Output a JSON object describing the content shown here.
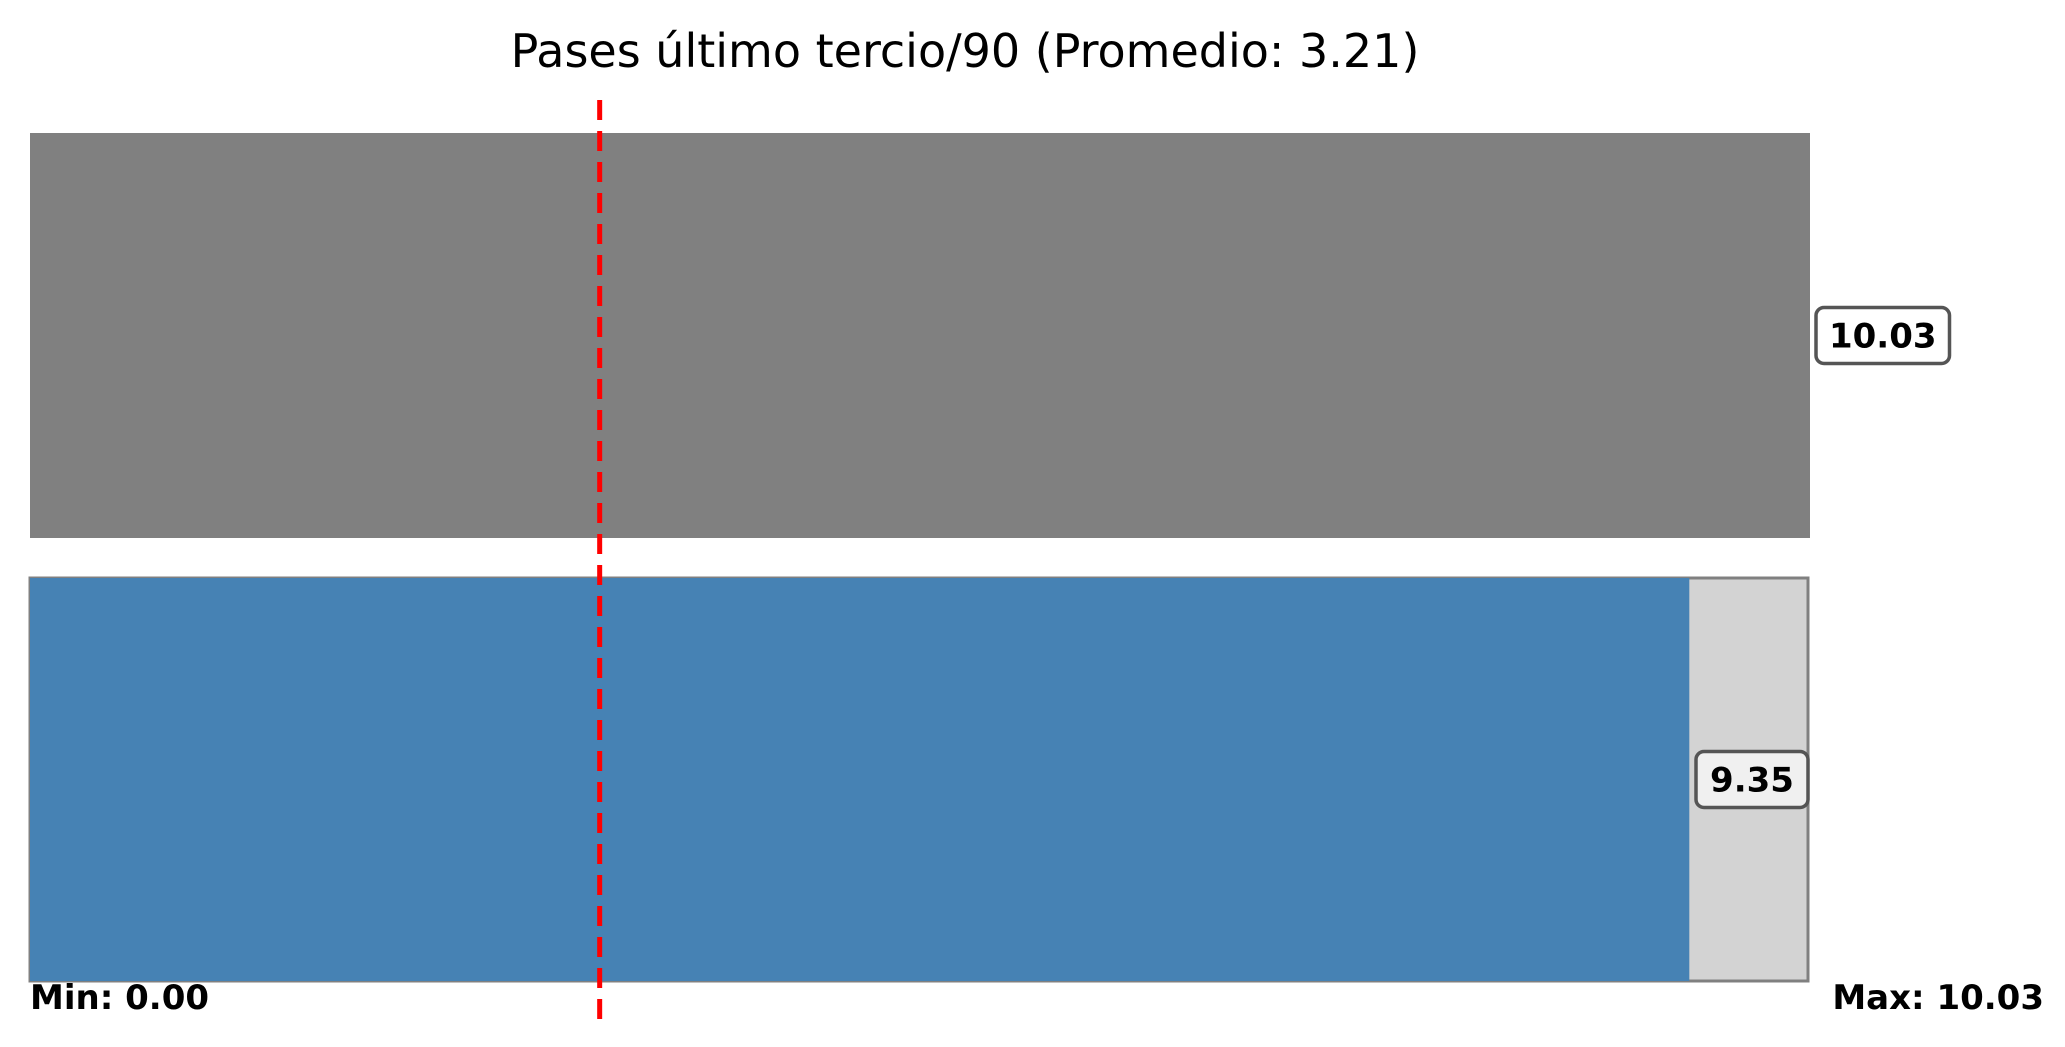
{
  "chart_data": {
    "type": "bar",
    "orientation": "horizontal",
    "title": "Pases último tercio/90 (Promedio: 3.21)",
    "xlim": [
      0,
      10.03
    ],
    "average": 3.21,
    "min_label": "Min: 0.00",
    "max_label": "Max: 10.03",
    "grid": false,
    "bars": [
      {
        "value": 10.03,
        "value_label": "10.03",
        "color": "#808080",
        "background_color": "#808080",
        "label_box_color": "#ffffff"
      },
      {
        "value": 9.35,
        "value_label": "9.35",
        "color": "#4682b4",
        "background_color": "#d3d3d3",
        "label_box_color": "#f0f0f0"
      }
    ],
    "average_line_color": "#ff0000"
  }
}
